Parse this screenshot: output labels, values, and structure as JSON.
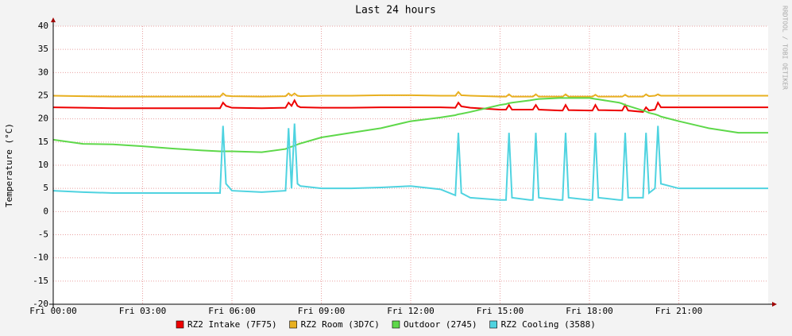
{
  "chart_data": {
    "type": "line",
    "title": "Last 24 hours",
    "y_label": "Temperature (°C)",
    "side_label": "RRDTOOL / TOBI OETIKER",
    "x": [
      0,
      1,
      2,
      3,
      4,
      5,
      5.6,
      5.7,
      5.8,
      6,
      7,
      7.8,
      7.9,
      8.0,
      8.1,
      8.2,
      8.3,
      9,
      10,
      11,
      12,
      13,
      13.5,
      13.6,
      13.7,
      14,
      15,
      15.2,
      15.3,
      15.4,
      16,
      16.1,
      16.2,
      16.3,
      17,
      17.1,
      17.2,
      17.3,
      18,
      18.1,
      18.2,
      18.3,
      19,
      19.1,
      19.2,
      19.3,
      19.8,
      19.9,
      20.0,
      20.2,
      20.3,
      20.4,
      21,
      22,
      23,
      24
    ],
    "xlim": [
      0,
      24
    ],
    "xticks": [
      {
        "value": 0,
        "label": "Fri 00:00"
      },
      {
        "value": 3,
        "label": "Fri 03:00"
      },
      {
        "value": 6,
        "label": "Fri 06:00"
      },
      {
        "value": 9,
        "label": "Fri 09:00"
      },
      {
        "value": 12,
        "label": "Fri 12:00"
      },
      {
        "value": 15,
        "label": "Fri 15:00"
      },
      {
        "value": 18,
        "label": "Fri 18:00"
      },
      {
        "value": 21,
        "label": "Fri 21:00"
      }
    ],
    "ylim": [
      -20,
      40
    ],
    "yticks": [
      -20,
      -15,
      -10,
      -5,
      0,
      5,
      10,
      15,
      20,
      25,
      30,
      35,
      40
    ],
    "grid": true,
    "series": [
      {
        "name": "RZ2 Intake (7F75)",
        "color": "#ee0000",
        "values": [
          22.5,
          22.4,
          22.3,
          22.3,
          22.3,
          22.3,
          22.3,
          23.5,
          22.8,
          22.4,
          22.3,
          22.4,
          23.5,
          22.8,
          24,
          22.8,
          22.5,
          22.4,
          22.4,
          22.5,
          22.5,
          22.5,
          22.4,
          23.5,
          22.7,
          22.4,
          22,
          22,
          23,
          22,
          22,
          22,
          23,
          22,
          21.8,
          21.8,
          23,
          21.9,
          21.8,
          21.8,
          23,
          21.9,
          21.8,
          21.8,
          23,
          21.8,
          21.5,
          22.5,
          21.8,
          22,
          23.5,
          22.5,
          22.5,
          22.5,
          22.5,
          22.5
        ]
      },
      {
        "name": "RZ2 Room (3D7C)",
        "color": "#e8b020",
        "values": [
          25,
          24.9,
          24.8,
          24.8,
          24.8,
          24.8,
          24.8,
          25.5,
          25,
          24.9,
          24.8,
          24.9,
          25.5,
          25,
          25.5,
          25,
          24.9,
          25,
          25,
          25.1,
          25.1,
          25,
          25,
          25.8,
          25.1,
          25,
          24.8,
          24.8,
          25.3,
          24.8,
          24.8,
          24.8,
          25.3,
          24.8,
          24.8,
          24.8,
          25.3,
          24.8,
          24.8,
          24.8,
          25.2,
          24.8,
          24.8,
          24.8,
          25.2,
          24.8,
          24.8,
          25.3,
          24.9,
          25,
          25.3,
          25,
          25,
          25,
          25,
          25
        ]
      },
      {
        "name": "Outdoor (2745)",
        "color": "#5ed84a",
        "values": [
          15.5,
          14.6,
          14.5,
          14.1,
          13.6,
          13.2,
          13,
          13,
          13,
          13,
          12.8,
          13.5,
          13.8,
          14,
          14.2,
          14.5,
          14.7,
          16,
          17,
          18,
          19.5,
          20.3,
          20.8,
          21,
          21.1,
          21.5,
          23,
          23.2,
          23.4,
          23.5,
          24,
          24.1,
          24.2,
          24.3,
          24.5,
          24.5,
          24.5,
          24.5,
          24.5,
          24.4,
          24.3,
          24.2,
          23.5,
          23.3,
          23,
          22.8,
          21.8,
          21.6,
          21.3,
          21,
          20.8,
          20.5,
          19.5,
          18,
          17,
          17
        ]
      },
      {
        "name": "RZ2 Cooling (3588)",
        "color": "#4fd3e0",
        "values": [
          4.5,
          4.2,
          4,
          4,
          4,
          4,
          4,
          18.5,
          6,
          4.5,
          4.2,
          4.5,
          18,
          5,
          19,
          6,
          5.5,
          5,
          5,
          5.2,
          5.5,
          4.8,
          3.5,
          17,
          4,
          3,
          2.5,
          2.5,
          17,
          3,
          2.5,
          2.5,
          17,
          3,
          2.5,
          2.5,
          17,
          3,
          2.5,
          2.5,
          17,
          3,
          2.5,
          2.5,
          17,
          3,
          3,
          17,
          4,
          5,
          18.5,
          6,
          5,
          5,
          5,
          5
        ]
      }
    ]
  }
}
